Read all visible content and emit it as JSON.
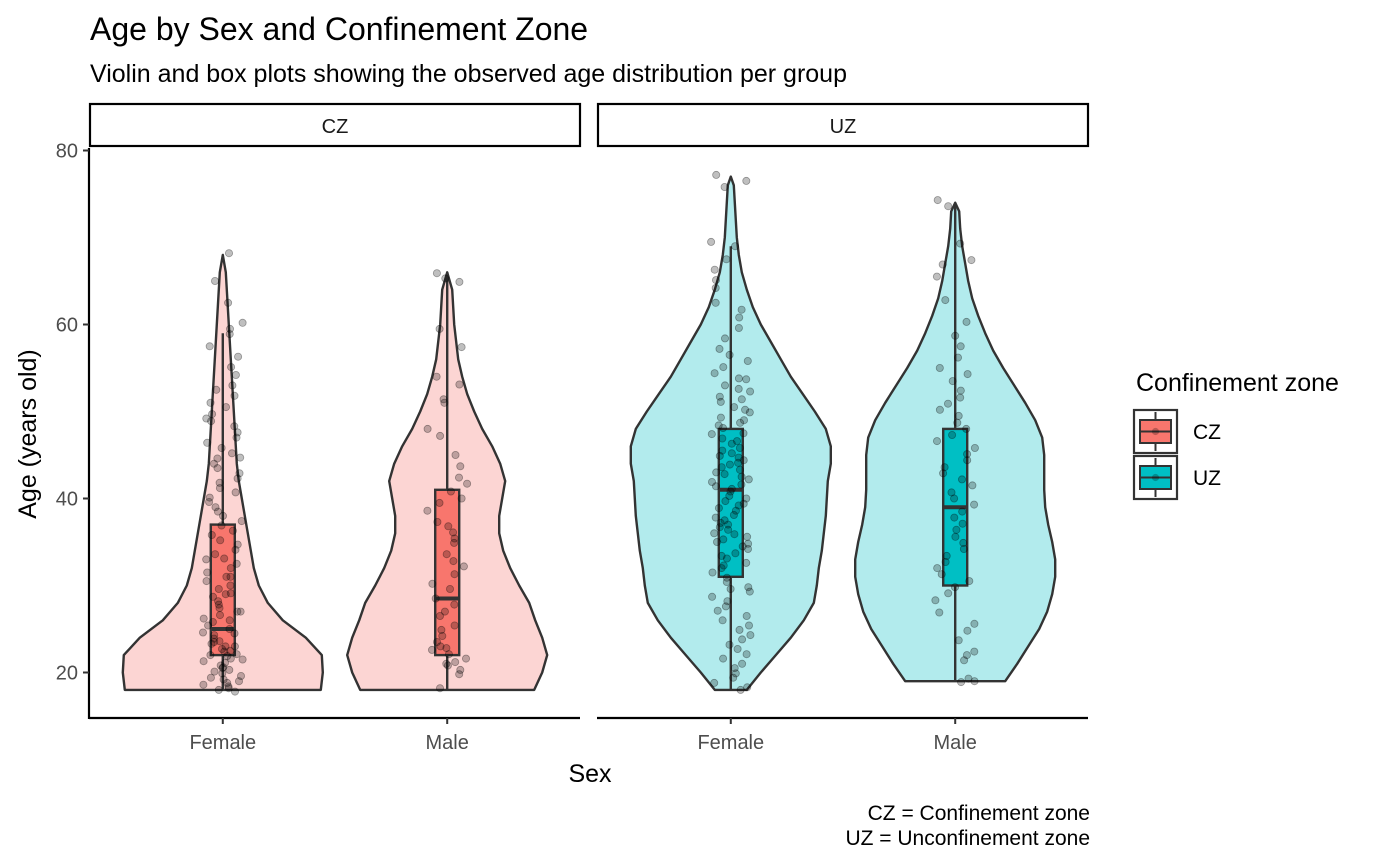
{
  "chart_data": {
    "type": "violin",
    "title": "Age by Sex and Confinement Zone",
    "subtitle": "Violin and box plots showing the observed age distribution per group",
    "xlabel": "Sex",
    "ylabel": "Age (years old)",
    "ylim": [
      15,
      85
    ],
    "yticks": [
      20,
      40,
      60,
      80
    ],
    "grid": false,
    "legend": {
      "title": "Confinement zone",
      "placement": "right",
      "entries": [
        {
          "label": "CZ",
          "fill": "#F8766D",
          "violin_fill": "#FCD5D3"
        },
        {
          "label": "UZ",
          "fill": "#00BFC4",
          "violin_fill": "#B2EBED"
        }
      ]
    },
    "caption": [
      "CZ = Confinement zone",
      "UZ = Unconfinement zone"
    ],
    "facets": [
      {
        "label": "CZ",
        "zone": "CZ",
        "groups": [
          {
            "category": "Female",
            "box": {
              "whisker_low": 18,
              "q1": 22,
              "median": 25,
              "q3": 37,
              "whisker_high": 59
            },
            "violin_range": [
              18,
              68
            ],
            "density": [
              [
                18,
                0.98
              ],
              [
                20,
                1.0
              ],
              [
                22,
                0.99
              ],
              [
                24,
                0.83
              ],
              [
                26,
                0.6
              ],
              [
                28,
                0.45
              ],
              [
                30,
                0.36
              ],
              [
                32,
                0.31
              ],
              [
                34,
                0.28
              ],
              [
                36,
                0.25
              ],
              [
                38,
                0.22
              ],
              [
                40,
                0.19
              ],
              [
                42,
                0.16
              ],
              [
                44,
                0.14
              ],
              [
                46,
                0.13
              ],
              [
                48,
                0.12
              ],
              [
                50,
                0.11
              ],
              [
                52,
                0.1
              ],
              [
                54,
                0.09
              ],
              [
                56,
                0.08
              ],
              [
                58,
                0.07
              ],
              [
                60,
                0.06
              ],
              [
                62,
                0.05
              ],
              [
                64,
                0.04
              ],
              [
                66,
                0.03
              ],
              [
                68,
                0.0
              ]
            ],
            "points": [
              68.2,
              65,
              62.5,
              60.2,
              59.5,
              58.9,
              57.5,
              56.3,
              55.1,
              54.2,
              53,
              52.5,
              51.8,
              51,
              50.5,
              49.7,
              48.9,
              48.3,
              47.6,
              47,
              46.4,
              45.8,
              45.2,
              44.6,
              44,
              43.5,
              42.9,
              42.3,
              41.8,
              41.2,
              40.7,
              40.1,
              39.6,
              39,
              38.5,
              38,
              37.4,
              36.9,
              36.3,
              35.8,
              35.2,
              34.7,
              34.1,
              33.6,
              33.1,
              32.5,
              32,
              31.5,
              31,
              30.5,
              30,
              29.6,
              29.1,
              28.7,
              28.2,
              27.8,
              27.4,
              27,
              26.6,
              26.2,
              25.8,
              25.4,
              25,
              24.6,
              24.3,
              23.9,
              23.6,
              23.3,
              23,
              22.7,
              22.4,
              22.1,
              21.9,
              21.6,
              21.3,
              21.1,
              20.8,
              20.6,
              20.3,
              20.1,
              19.9,
              19.6,
              19.4,
              19.2,
              19,
              18.8,
              18.6,
              18.4,
              18.2,
              18,
              17.8,
              22.5,
              23.5,
              24.5,
              21.5,
              20.5,
              22,
              23,
              26,
              27,
              29,
              31,
              33,
              44.7,
              49.2
            ]
          },
          {
            "category": "Male",
            "box": {
              "whisker_low": 18,
              "q1": 22,
              "median": 28.5,
              "q3": 41,
              "whisker_high": 66
            },
            "violin_range": [
              18,
              66
            ],
            "density": [
              [
                18,
                0.87
              ],
              [
                20,
                0.95
              ],
              [
                22,
                1.0
              ],
              [
                24,
                0.95
              ],
              [
                26,
                0.88
              ],
              [
                28,
                0.82
              ],
              [
                30,
                0.72
              ],
              [
                32,
                0.63
              ],
              [
                34,
                0.56
              ],
              [
                36,
                0.52
              ],
              [
                38,
                0.52
              ],
              [
                40,
                0.55
              ],
              [
                42,
                0.58
              ],
              [
                44,
                0.53
              ],
              [
                46,
                0.45
              ],
              [
                48,
                0.35
              ],
              [
                50,
                0.27
              ],
              [
                52,
                0.2
              ],
              [
                54,
                0.15
              ],
              [
                56,
                0.11
              ],
              [
                58,
                0.09
              ],
              [
                60,
                0.07
              ],
              [
                62,
                0.06
              ],
              [
                64,
                0.05
              ],
              [
                66,
                0.0
              ]
            ],
            "points": [
              65.9,
              65.3,
              64.9,
              59.5,
              57.4,
              54,
              53.1,
              51.4,
              51,
              48,
              47.2,
              45,
              43.7,
              42.4,
              41.7,
              40.8,
              40,
              39.5,
              38.6,
              37.3,
              36.8,
              36.1,
              35.4,
              34.9,
              33.6,
              32.8,
              32.2,
              31.3,
              30.2,
              29.6,
              28.5,
              27.8,
              27,
              26.5,
              25.4,
              24.9,
              24.2,
              23.5,
              23,
              22.6,
              22.1,
              21.6,
              21.2,
              20.8,
              20.3,
              19.8,
              18.2,
              21,
              22.8
            ]
          }
        ]
      },
      {
        "label": "UZ",
        "zone": "UZ",
        "groups": [
          {
            "category": "Female",
            "box": {
              "whisker_low": 18,
              "q1": 31,
              "median": 41,
              "q3": 48,
              "whisker_high": 69
            },
            "violin_range": [
              18,
              77
            ],
            "density": [
              [
                18,
                0.16
              ],
              [
                20,
                0.3
              ],
              [
                22,
                0.45
              ],
              [
                24,
                0.6
              ],
              [
                26,
                0.73
              ],
              [
                28,
                0.83
              ],
              [
                30,
                0.86
              ],
              [
                32,
                0.88
              ],
              [
                34,
                0.91
              ],
              [
                36,
                0.93
              ],
              [
                38,
                0.95
              ],
              [
                40,
                0.96
              ],
              [
                42,
                0.97
              ],
              [
                44,
                1.0
              ],
              [
                46,
                1.0
              ],
              [
                48,
                0.95
              ],
              [
                50,
                0.84
              ],
              [
                52,
                0.72
              ],
              [
                54,
                0.6
              ],
              [
                56,
                0.5
              ],
              [
                58,
                0.4
              ],
              [
                60,
                0.3
              ],
              [
                62,
                0.22
              ],
              [
                64,
                0.16
              ],
              [
                66,
                0.11
              ],
              [
                68,
                0.08
              ],
              [
                70,
                0.06
              ],
              [
                72,
                0.05
              ],
              [
                74,
                0.04
              ],
              [
                76,
                0.03
              ],
              [
                77,
                0.0
              ]
            ],
            "points": [
              77.2,
              76.5,
              75.8,
              69.5,
              69,
              67.5,
              66.3,
              65.1,
              64.2,
              62.5,
              61.7,
              60.8,
              59.6,
              58.4,
              57.2,
              56.5,
              55.8,
              55.1,
              54.4,
              53.7,
              53,
              52.3,
              51.7,
              51.1,
              50.5,
              49.9,
              49.3,
              48.7,
              48.1,
              47.5,
              46.9,
              46.3,
              45.8,
              45.2,
              44.7,
              44.1,
              43.6,
              43,
              42.5,
              41.9,
              41.4,
              40.8,
              40.3,
              39.7,
              39.2,
              38.6,
              38.1,
              37.5,
              37,
              36.4,
              35.9,
              35.3,
              34.8,
              34.2,
              33.7,
              33.1,
              32.6,
              32,
              31.5,
              30.9,
              30.4,
              29.8,
              29.3,
              28.7,
              28.2,
              27.6,
              27.1,
              26.5,
              26,
              25.4,
              24.9,
              24.3,
              23.8,
              23.2,
              22.7,
              22.1,
              21.6,
              21,
              20.5,
              19.9,
              19.4,
              18.8,
              18.3,
              18,
              47.4,
              46.6,
              45.5,
              44.4,
              43.3,
              42.2,
              41.1,
              40,
              38.9,
              37.8,
              36.7,
              35.6,
              34.5,
              33.4,
              32.3,
              50.2,
              51.4,
              52.6,
              53.8,
              48.4,
              49,
              39.4,
              41.6,
              44.9,
              35,
              36,
              37.2,
              42.8,
              43.9,
              29.6
            ]
          },
          {
            "category": "Male",
            "box": {
              "whisker_low": 19,
              "q1": 30,
              "median": 39,
              "q3": 48,
              "whisker_high": 74
            },
            "violin_range": [
              19,
              74
            ],
            "density": [
              [
                19,
                0.5
              ],
              [
                21,
                0.62
              ],
              [
                23,
                0.73
              ],
              [
                25,
                0.84
              ],
              [
                27,
                0.92
              ],
              [
                29,
                0.97
              ],
              [
                31,
                1.0
              ],
              [
                33,
                1.0
              ],
              [
                35,
                0.97
              ],
              [
                37,
                0.93
              ],
              [
                39,
                0.9
              ],
              [
                41,
                0.89
              ],
              [
                43,
                0.89
              ],
              [
                45,
                0.89
              ],
              [
                47,
                0.87
              ],
              [
                49,
                0.8
              ],
              [
                51,
                0.7
              ],
              [
                53,
                0.59
              ],
              [
                55,
                0.48
              ],
              [
                57,
                0.38
              ],
              [
                59,
                0.3
              ],
              [
                61,
                0.23
              ],
              [
                63,
                0.17
              ],
              [
                65,
                0.13
              ],
              [
                67,
                0.1
              ],
              [
                69,
                0.07
              ],
              [
                71,
                0.05
              ],
              [
                73,
                0.04
              ],
              [
                74,
                0.0
              ]
            ],
            "points": [
              74.3,
              73.6,
              69.3,
              67.4,
              66.9,
              65.5,
              62.8,
              60.3,
              58.7,
              57.5,
              56.2,
              55,
              54.3,
              53.5,
              52.4,
              51.6,
              50.9,
              50.2,
              49.5,
              48.7,
              48,
              47.3,
              46.6,
              45.8,
              45.1,
              44.4,
              43.6,
              42.9,
              42.2,
              41.5,
              40.7,
              40,
              39.3,
              38.5,
              37.8,
              37.1,
              36.4,
              35.6,
              34.9,
              34.2,
              33.4,
              32.7,
              32,
              31.3,
              30.5,
              29.8,
              29.1,
              28.3,
              26.9,
              25.6,
              24.8,
              23.7,
              22.4,
              22,
              21.4,
              19.3,
              19,
              18.9
            ]
          }
        ]
      }
    ]
  }
}
